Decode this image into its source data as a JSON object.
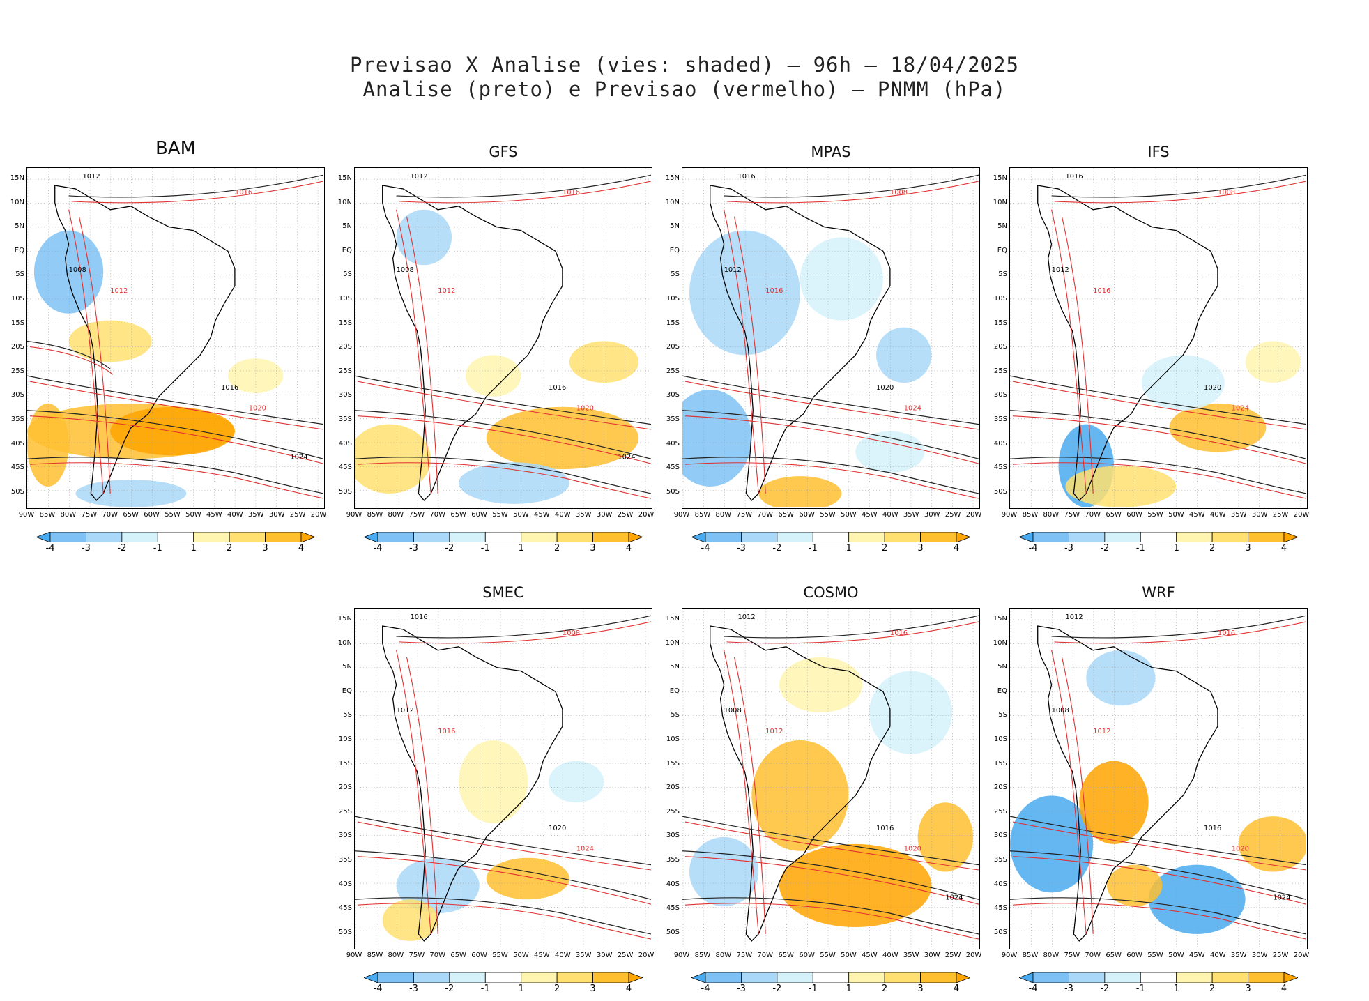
{
  "title": {
    "line1": "Previsao X Analise (vies: shaded) – 96h – 18/04/2025",
    "line2": "Analise (preto) e Previsao (vermelho) – PNMM (hPa)"
  },
  "axes": {
    "lat_labels": [
      "15N",
      "10N",
      "5N",
      "EQ",
      "5S",
      "10S",
      "15S",
      "20S",
      "25S",
      "30S",
      "35S",
      "40S",
      "45S",
      "50S"
    ],
    "lon_labels": [
      "90W",
      "85W",
      "80W",
      "75W",
      "70W",
      "65W",
      "60W",
      "55W",
      "50W",
      "45W",
      "40W",
      "35W",
      "30W",
      "25W",
      "20W"
    ]
  },
  "colorbar": {
    "labels": [
      "-4",
      "-3",
      "-2",
      "-1",
      "1",
      "2",
      "3",
      "4"
    ],
    "colors": [
      "#4aaaf0",
      "#7ec2f5",
      "#a9d8f8",
      "#d5f2fb",
      "#ffffff",
      "#fff5b0",
      "#ffe070",
      "#ffc030",
      "#ffa500"
    ]
  },
  "panels": [
    {
      "name": "BAM",
      "contours": [
        "1012",
        "1016",
        "1008",
        "1012",
        "1016",
        "1020",
        "1024"
      ]
    },
    {
      "name": "GFS",
      "contours": [
        "1012",
        "1016",
        "1008",
        "1012",
        "1016",
        "1020",
        "1024"
      ]
    },
    {
      "name": "MPAS",
      "contours": [
        "1016",
        "1008",
        "1012",
        "1016",
        "1020",
        "1024"
      ]
    },
    {
      "name": "IFS",
      "contours": [
        "1016",
        "1008",
        "1012",
        "1016",
        "1020",
        "1024"
      ]
    },
    {
      "name": "SMEC",
      "contours": [
        "1016",
        "1008",
        "1012",
        "1016",
        "1020",
        "1024"
      ]
    },
    {
      "name": "COSMO",
      "contours": [
        "1012",
        "1016",
        "1008",
        "1012",
        "1016",
        "1020",
        "1024"
      ]
    },
    {
      "name": "WRF",
      "contours": [
        "1012",
        "1016",
        "1008",
        "1012",
        "1016",
        "1020",
        "1024"
      ]
    }
  ]
}
